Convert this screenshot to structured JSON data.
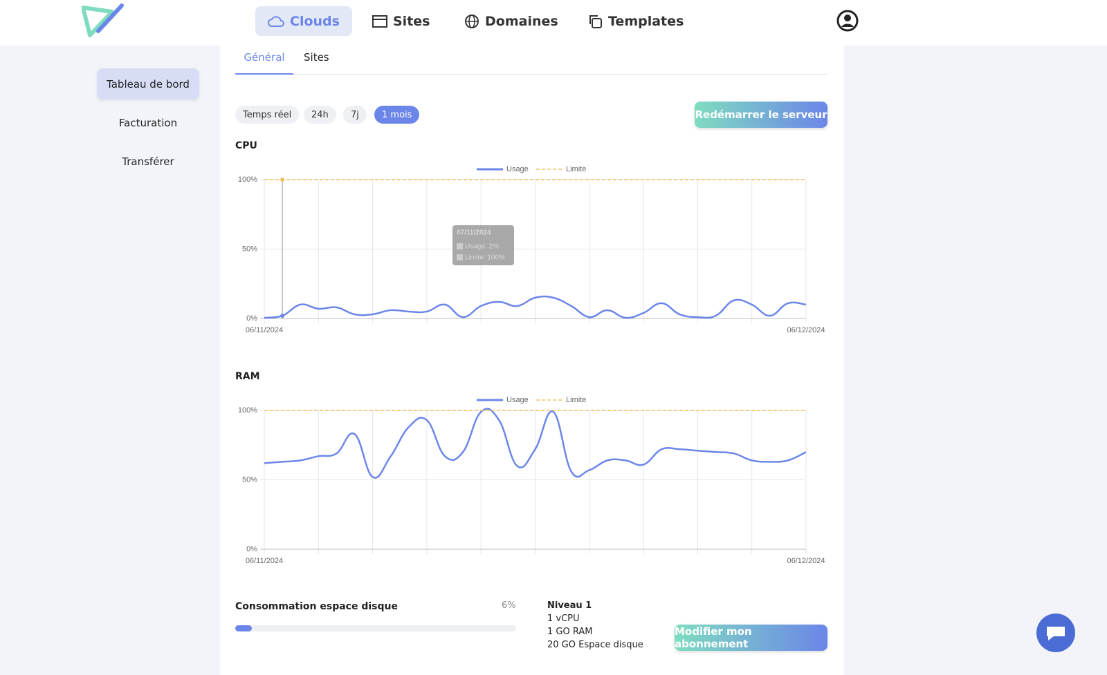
{
  "nav": {
    "items": [
      "Clouds",
      "Sites",
      "Domaines",
      "Templates"
    ]
  },
  "sidebar": {
    "items": [
      "Tableau de bord",
      "Facturation",
      "Transférer"
    ]
  },
  "tabs": [
    "Général",
    "Sites"
  ],
  "ranges": [
    "Temps réel",
    "24h",
    "7j",
    "1 mois"
  ],
  "restart_button": "Redémarrer le serveur",
  "charts": [
    {
      "type": "line",
      "title": "CPU",
      "categories": [
        "06/11/2024",
        null,
        null,
        null,
        null,
        null,
        null,
        null,
        null,
        null,
        null,
        null,
        null,
        null,
        null,
        null,
        null,
        null,
        null,
        null,
        null,
        null,
        null,
        null,
        null,
        null,
        null,
        null,
        null,
        null,
        "06/12/2024"
      ],
      "series": [
        {
          "name": "Usage",
          "color": "#6b86e8",
          "style": "solid",
          "values": [
            0.5,
            2,
            10,
            7,
            8,
            3,
            3,
            6,
            5,
            5,
            10,
            1,
            9,
            12,
            9,
            15,
            15,
            9,
            1,
            6,
            0.5,
            4,
            11,
            3,
            1,
            2,
            13,
            10,
            2,
            11,
            10
          ]
        },
        {
          "name": "Limite",
          "color": "#f0c060",
          "style": "dashed",
          "values": [
            100,
            100,
            100,
            100,
            100,
            100,
            100,
            100,
            100,
            100,
            100,
            100,
            100,
            100,
            100,
            100,
            100,
            100,
            100,
            100,
            100,
            100,
            100,
            100,
            100,
            100,
            100,
            100,
            100,
            100,
            100
          ]
        }
      ],
      "ylim": [
        0,
        100
      ],
      "yticks": [
        {
          "value": 0,
          "label": "0%"
        },
        {
          "value": 50,
          "label": "50%"
        },
        {
          "value": 100,
          "label": "100%"
        }
      ],
      "grid": true,
      "tooltip": {
        "title": "07/11/2024",
        "lines": [
          "Usage: 2%",
          "Limite: 100%"
        ]
      }
    },
    {
      "type": "line",
      "title": "RAM",
      "categories": [
        "06/11/2024",
        null,
        null,
        null,
        null,
        null,
        null,
        null,
        null,
        null,
        null,
        null,
        null,
        null,
        null,
        null,
        null,
        null,
        null,
        null,
        null,
        null,
        null,
        null,
        null,
        null,
        null,
        null,
        null,
        null,
        "06/12/2024"
      ],
      "series": [
        {
          "name": "Usage",
          "color": "#6b86e8",
          "style": "solid",
          "values": [
            62,
            63,
            64,
            67,
            69,
            83,
            52,
            67,
            88,
            93,
            67,
            70,
            99,
            93,
            60,
            72,
            99,
            56,
            57,
            64,
            64,
            61,
            72,
            72,
            71,
            70,
            69,
            64,
            63,
            64,
            70
          ]
        },
        {
          "name": "Limite",
          "color": "#f0c060",
          "style": "dashed",
          "values": [
            100,
            100,
            100,
            100,
            100,
            100,
            100,
            100,
            100,
            100,
            100,
            100,
            100,
            100,
            100,
            100,
            100,
            100,
            100,
            100,
            100,
            100,
            100,
            100,
            100,
            100,
            100,
            100,
            100,
            100,
            100
          ]
        }
      ],
      "ylim": [
        0,
        100
      ],
      "yticks": [
        {
          "value": 0,
          "label": "0%"
        },
        {
          "value": 50,
          "label": "50%"
        },
        {
          "value": 100,
          "label": "100%"
        }
      ],
      "grid": true
    }
  ],
  "disk": {
    "label": "Consommation espace disque",
    "value": 6,
    "value_label": "6%"
  },
  "plan": {
    "name": "Niveau 1",
    "features": [
      "1 vCPU",
      "1 GO RAM",
      "20 GO Espace disque"
    ]
  },
  "change_plan_button": "Modifier mon abonnement"
}
